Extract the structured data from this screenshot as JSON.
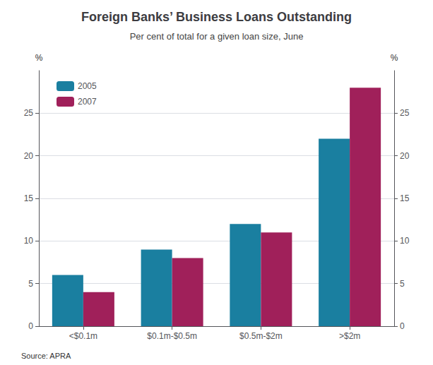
{
  "chart_data": {
    "type": "bar",
    "title": "Foreign Banks’ Business Loans Outstanding",
    "subtitle": "Per cent of total for a given loan size, June",
    "source": "Source: APRA",
    "categories": [
      "<$0.1m",
      "$0.1m-$0.5m",
      "$0.5m-$2m",
      ">$2m"
    ],
    "series": [
      {
        "name": "2005",
        "color": "#1a7fa0",
        "values": [
          6,
          9,
          12,
          22
        ]
      },
      {
        "name": "2007",
        "color": "#a0205a",
        "values": [
          4,
          8,
          11,
          28
        ]
      }
    ],
    "ylabel": "%",
    "y2label": "%",
    "ylim": [
      0,
      30
    ],
    "yticks": [
      0,
      5,
      10,
      15,
      20,
      25
    ],
    "y2lim": [
      0,
      30
    ],
    "y2ticks": [
      0,
      5,
      10,
      15,
      20,
      25
    ],
    "grid": true,
    "legend": "upper left"
  }
}
